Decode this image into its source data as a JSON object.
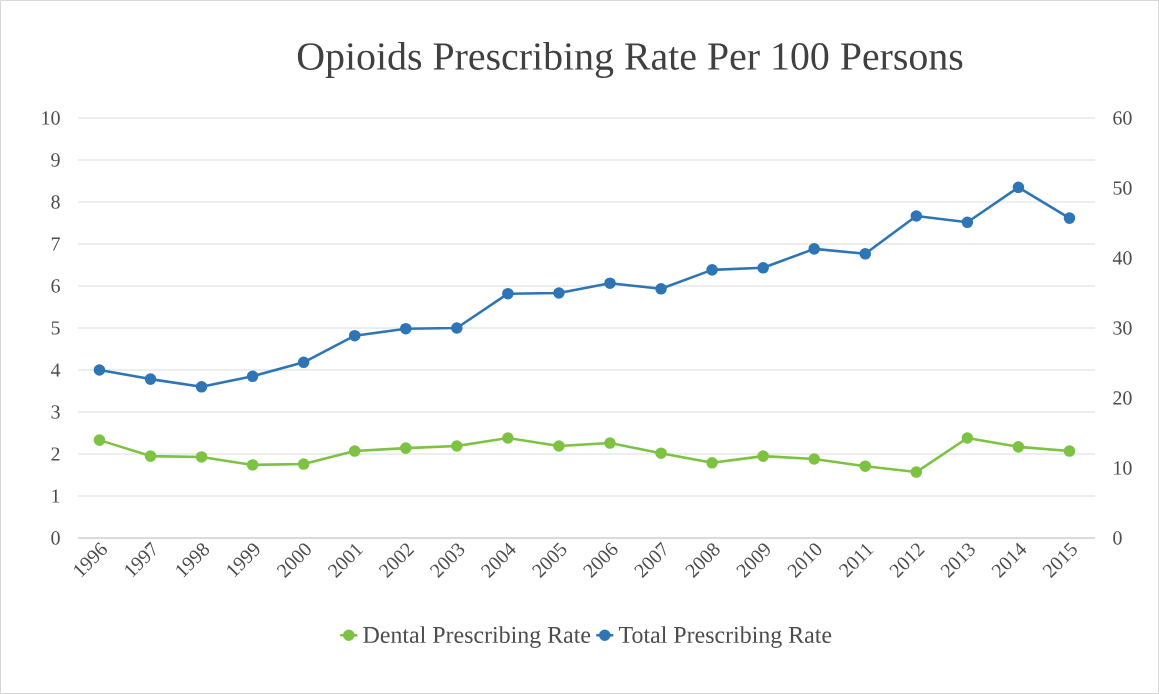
{
  "chart_data": {
    "type": "line",
    "title": "Opioids Prescribing Rate Per 100 Persons",
    "categories": [
      "1996",
      "1997",
      "1998",
      "1999",
      "2000",
      "2001",
      "2002",
      "2003",
      "2004",
      "2005",
      "2006",
      "2007",
      "2008",
      "2009",
      "2010",
      "2011",
      "2012",
      "2013",
      "2014",
      "2015"
    ],
    "series": [
      {
        "name": "Dental Prescribing Rate",
        "color": "#7dc242",
        "axis": "y",
        "values": [
          2.33,
          1.95,
          1.93,
          1.74,
          1.76,
          2.07,
          2.14,
          2.19,
          2.38,
          2.19,
          2.26,
          2.02,
          1.79,
          1.95,
          1.88,
          1.71,
          1.57,
          2.38,
          2.17,
          2.07
        ]
      },
      {
        "name": "Total Prescribing Rate",
        "color": "#2e75b6",
        "axis": "y2",
        "values": [
          24.0,
          22.7,
          21.6,
          23.1,
          25.1,
          28.9,
          29.9,
          30.0,
          34.9,
          35.0,
          36.4,
          35.6,
          38.3,
          38.6,
          41.3,
          40.6,
          46.0,
          45.1,
          50.1,
          45.7
        ]
      }
    ],
    "ylim": [
      0,
      10
    ],
    "yticks": [
      0,
      1,
      2,
      3,
      4,
      5,
      6,
      7,
      8,
      9,
      10
    ],
    "y2lim": [
      0,
      60
    ],
    "y2ticks": [
      0,
      10,
      20,
      30,
      40,
      50,
      60
    ],
    "grid": "y",
    "legend": "bottom",
    "marker": "circle"
  }
}
